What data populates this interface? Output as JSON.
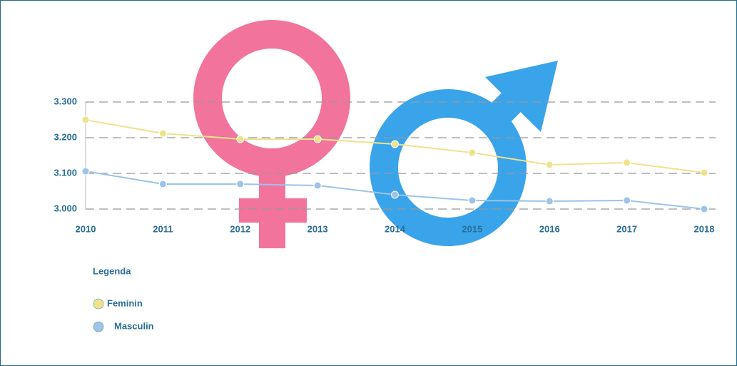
{
  "chart_data": {
    "type": "line",
    "categories": [
      "2010",
      "2011",
      "2012",
      "2013",
      "2014",
      "2015",
      "2016",
      "2017",
      "2018"
    ],
    "series": [
      {
        "name": "Feminin",
        "color": "#efe28c",
        "values": [
          3250,
          3212,
          3196,
          3196,
          3182,
          3158,
          3124,
          3130,
          3102
        ]
      },
      {
        "name": "Masculin",
        "color": "#9cc3e8",
        "values": [
          3106,
          3070,
          3070,
          3066,
          3040,
          3024,
          3022,
          3024,
          3000
        ]
      }
    ],
    "ylim": [
      3000,
      3300
    ],
    "yticks": [
      {
        "value": 3000,
        "label": "3.000"
      },
      {
        "value": 3100,
        "label": "3.100"
      },
      {
        "value": 3200,
        "label": "3.200"
      },
      {
        "value": 3300,
        "label": "3.300"
      }
    ],
    "grid": true,
    "legend_title": "Legenda",
    "legend": "bottom-left"
  }
}
